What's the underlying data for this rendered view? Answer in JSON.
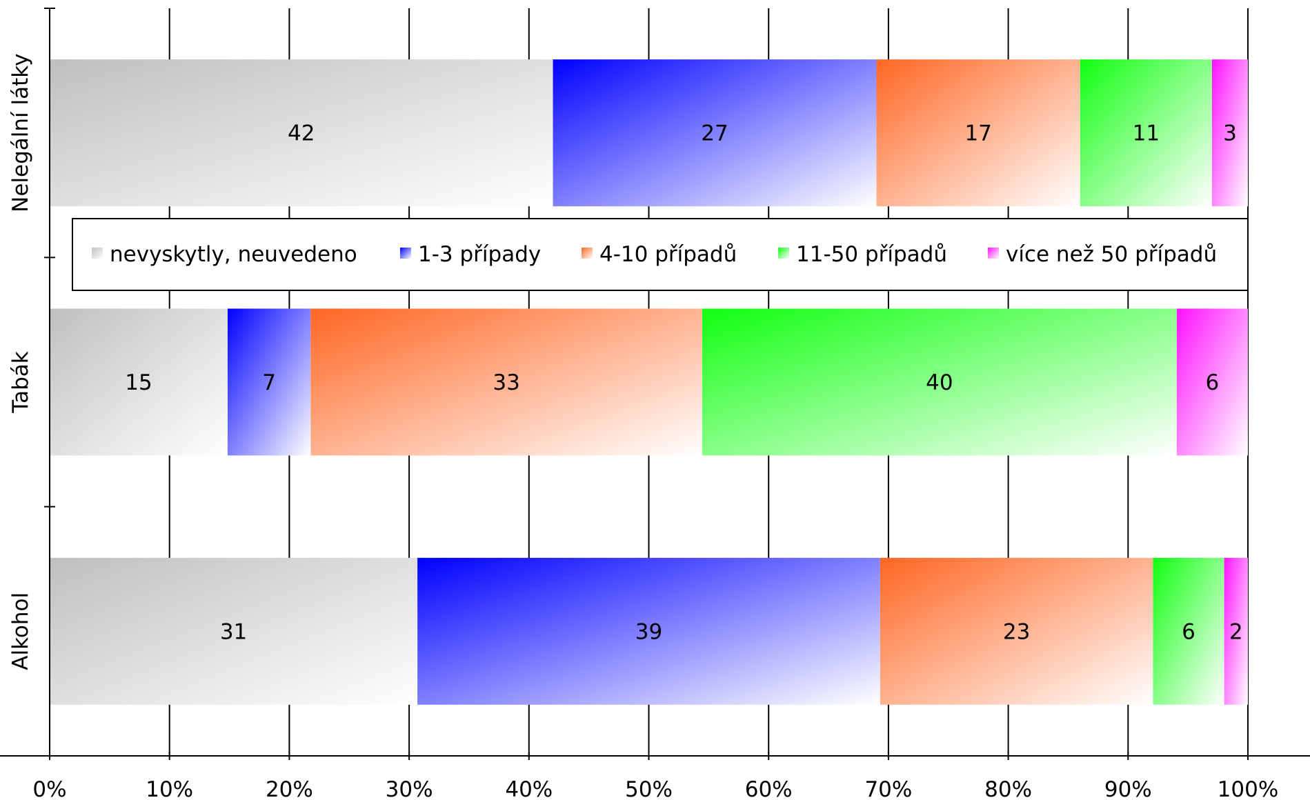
{
  "chart_data": {
    "type": "bar",
    "orientation": "horizontal",
    "stacked": "percent",
    "categories": [
      "Nelegální látky",
      "Tabák",
      "Alkohol"
    ],
    "series": [
      {
        "name": "nevyskytly, neuvedeno",
        "values": [
          42,
          15,
          31
        ],
        "color": "#bfbfbf"
      },
      {
        "name": "1-3 případy",
        "values": [
          27,
          7,
          39
        ],
        "color": "#0000ff"
      },
      {
        "name": "4-10 případů",
        "values": [
          17,
          33,
          23
        ],
        "color": "#ff6622"
      },
      {
        "name": "11-50 případů",
        "values": [
          11,
          40,
          6
        ],
        "color": "#11ff11"
      },
      {
        "name": "více než 50 případů",
        "values": [
          3,
          6,
          2
        ],
        "color": "#ff11ff"
      }
    ],
    "x_ticks": [
      "0%",
      "10%",
      "20%",
      "30%",
      "40%",
      "50%",
      "60%",
      "70%",
      "80%",
      "90%",
      "100%"
    ],
    "xlim": [
      0,
      100
    ],
    "grid": true,
    "legend_position": "between-bars"
  }
}
